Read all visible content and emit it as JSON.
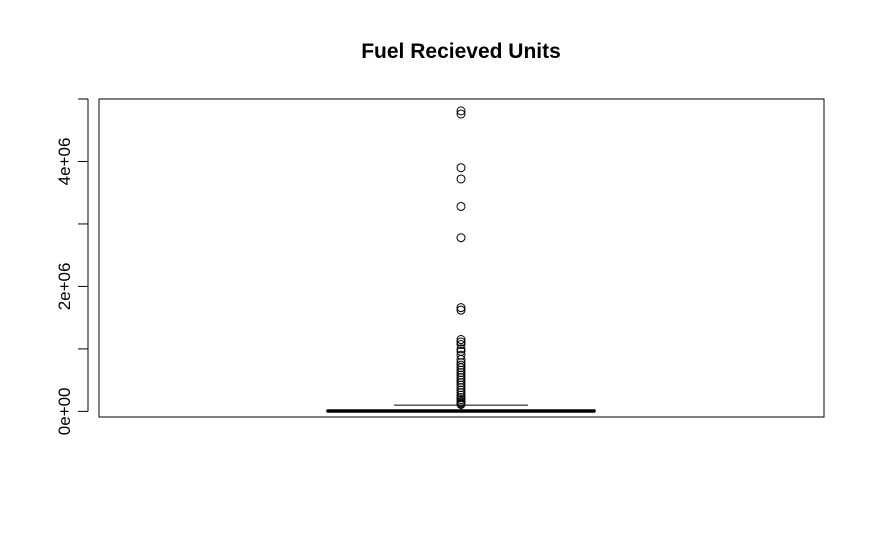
{
  "chart_data": {
    "type": "boxplot",
    "title": "Fuel Recieved Units",
    "xlabel": "",
    "ylabel": "",
    "ylim": [
      -90000,
      5000000
    ],
    "y_ticks": [
      0,
      1000000,
      2000000,
      3000000,
      4000000,
      5000000
    ],
    "y_tick_labels": [
      "0e+00",
      "",
      "2e+06",
      "",
      "4e+06",
      ""
    ],
    "grid": false,
    "legend": "none",
    "box": {
      "min": 0,
      "q1": 2000,
      "median": 6000,
      "q3": 15000,
      "upper_whisker": 100000
    },
    "outliers": [
      4810000,
      4760000,
      3900000,
      3720000,
      3280000,
      2780000,
      1660000,
      1620000,
      1150000,
      1110000,
      1070000,
      1000000,
      960000,
      900000,
      830000,
      780000,
      740000,
      700000,
      660000,
      620000,
      580000,
      540000,
      500000,
      460000,
      420000,
      380000,
      340000,
      300000,
      260000,
      220000,
      190000,
      160000,
      140000,
      120000,
      110000
    ]
  }
}
